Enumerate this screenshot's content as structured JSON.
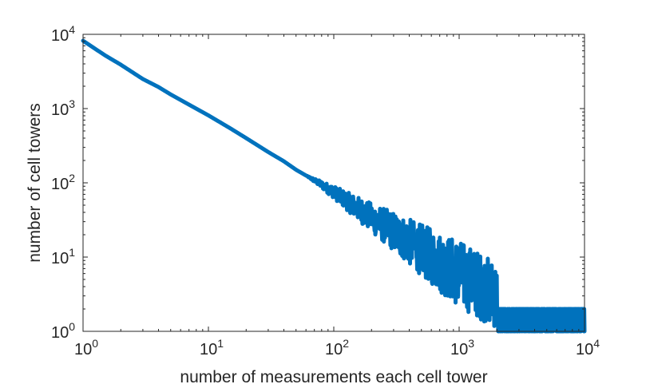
{
  "chart_data": {
    "type": "line",
    "title": "",
    "xlabel": "number of measurements each cell tower",
    "ylabel": "number of cell towers",
    "xscale": "log",
    "yscale": "log",
    "xlim": [
      1,
      10000
    ],
    "ylim": [
      1,
      10000
    ],
    "grid": false,
    "legend": "none",
    "x_ticks": [
      {
        "base": "10",
        "exp": "0",
        "value": 1
      },
      {
        "base": "10",
        "exp": "1",
        "value": 10
      },
      {
        "base": "10",
        "exp": "2",
        "value": 100
      },
      {
        "base": "10",
        "exp": "3",
        "value": 1000
      },
      {
        "base": "10",
        "exp": "4",
        "value": 10000
      }
    ],
    "y_ticks": [
      {
        "base": "10",
        "exp": "0",
        "value": 1
      },
      {
        "base": "10",
        "exp": "1",
        "value": 10
      },
      {
        "base": "10",
        "exp": "2",
        "value": 100
      },
      {
        "base": "10",
        "exp": "3",
        "value": 1000
      },
      {
        "base": "10",
        "exp": "4",
        "value": 10000
      }
    ],
    "series": [
      {
        "color": "#0072BD",
        "x": [
          1,
          1.5,
          2,
          3,
          4,
          5,
          7,
          10,
          15,
          20,
          30,
          40,
          50,
          70,
          100,
          150,
          200,
          300,
          400,
          500,
          700,
          1000,
          1500,
          2000,
          3000,
          5000,
          7000,
          10000
        ],
        "y": [
          8200,
          5200,
          3900,
          2500,
          1950,
          1550,
          1130,
          810,
          540,
          400,
          260,
          195,
          150,
          108,
          75,
          47,
          34,
          22,
          16,
          12.5,
          8.5,
          6,
          4,
          3,
          2.2,
          1.6,
          1.3,
          1.1
        ],
        "noise_from_x": 60,
        "min_value": 1,
        "max_value": 2
      }
    ]
  }
}
